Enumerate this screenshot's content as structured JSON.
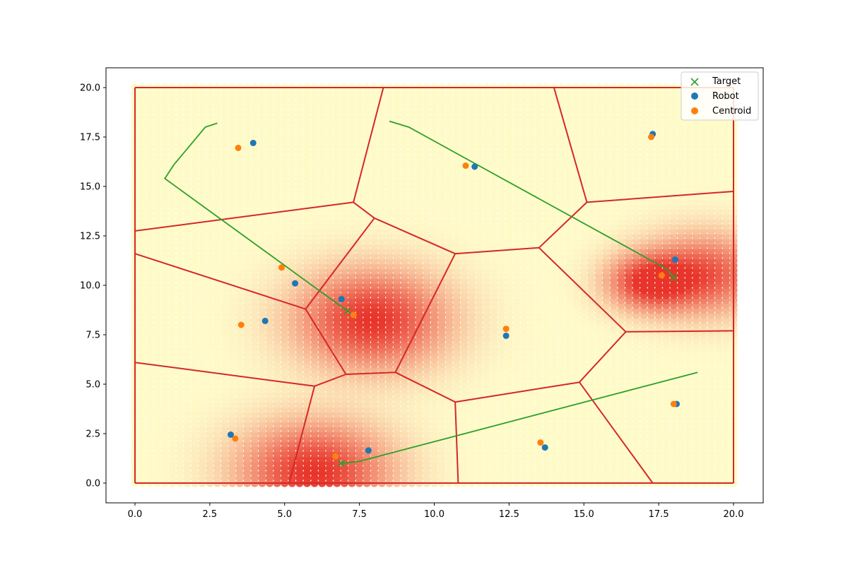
{
  "chart_data": {
    "type": "scatter",
    "xlim": [
      -1,
      21
    ],
    "ylim": [
      -1,
      21
    ],
    "x_ticks": [
      "0.0",
      "2.5",
      "5.0",
      "7.5",
      "10.0",
      "12.5",
      "15.0",
      "17.5",
      "20.0"
    ],
    "y_ticks": [
      "0.0",
      "2.5",
      "5.0",
      "7.5",
      "10.0",
      "12.5",
      "15.0",
      "17.5",
      "20.0"
    ],
    "grid": false,
    "legend_position": "top-right",
    "legend": [
      {
        "label": "Target",
        "marker": "x",
        "color": "#2ca02c"
      },
      {
        "label": "Robot",
        "marker": "circle",
        "color": "#1f77b4"
      },
      {
        "label": "Centroid",
        "marker": "circle",
        "color": "#ff7f0e"
      }
    ],
    "density_peaks": [
      {
        "x": 7.9,
        "y": 8.3,
        "sigma": 1.6,
        "weight": 1.0
      },
      {
        "x": 6.0,
        "y": 0.6,
        "sigma": 1.6,
        "weight": 1.0
      },
      {
        "x": 17.2,
        "y": 10.2,
        "sigma": 0.9,
        "weight": 0.95
      },
      {
        "x": 19.0,
        "y": 10.6,
        "sigma": 1.3,
        "weight": 0.8
      }
    ],
    "density_colors": {
      "low": "#fffbc9",
      "high": "#e8342a"
    },
    "targets": [
      {
        "x": 7.1,
        "y": 8.7
      },
      {
        "x": 18.0,
        "y": 10.4
      },
      {
        "x": 6.9,
        "y": 1.0
      }
    ],
    "robots": [
      {
        "x": 3.95,
        "y": 17.2
      },
      {
        "x": 11.35,
        "y": 16.0
      },
      {
        "x": 17.3,
        "y": 17.65
      },
      {
        "x": 5.35,
        "y": 10.1
      },
      {
        "x": 6.9,
        "y": 9.3
      },
      {
        "x": 4.35,
        "y": 8.2
      },
      {
        "x": 12.4,
        "y": 7.45
      },
      {
        "x": 18.05,
        "y": 11.3
      },
      {
        "x": 3.2,
        "y": 2.45
      },
      {
        "x": 7.8,
        "y": 1.65
      },
      {
        "x": 13.7,
        "y": 1.8
      },
      {
        "x": 18.1,
        "y": 4.0
      }
    ],
    "centroids": [
      {
        "x": 3.45,
        "y": 16.95
      },
      {
        "x": 11.05,
        "y": 16.05
      },
      {
        "x": 17.25,
        "y": 17.5
      },
      {
        "x": 4.9,
        "y": 10.9
      },
      {
        "x": 7.3,
        "y": 8.5
      },
      {
        "x": 3.55,
        "y": 8.0
      },
      {
        "x": 12.4,
        "y": 7.8
      },
      {
        "x": 17.6,
        "y": 10.5
      },
      {
        "x": 3.35,
        "y": 2.25
      },
      {
        "x": 6.7,
        "y": 1.35
      },
      {
        "x": 13.55,
        "y": 2.05
      },
      {
        "x": 18.0,
        "y": 4.0
      }
    ],
    "target_paths": [
      [
        [
          2.75,
          18.2
        ],
        [
          2.35,
          18.0
        ],
        [
          1.3,
          16.1
        ],
        [
          1.0,
          15.4
        ],
        [
          7.1,
          8.7
        ]
      ],
      [
        [
          8.5,
          18.3
        ],
        [
          9.15,
          18.0
        ],
        [
          17.8,
          10.8
        ],
        [
          18.0,
          10.4
        ]
      ],
      [
        [
          6.9,
          1.0
        ],
        [
          7.5,
          1.1
        ],
        [
          18.8,
          5.6
        ]
      ]
    ],
    "voronoi_edges": [
      [
        [
          0,
          20
        ],
        [
          20,
          20
        ]
      ],
      [
        [
          0,
          0
        ],
        [
          20,
          0
        ]
      ],
      [
        [
          0,
          0
        ],
        [
          0,
          20
        ]
      ],
      [
        [
          20,
          0
        ],
        [
          20,
          20
        ]
      ],
      [
        [
          8.3,
          20
        ],
        [
          7.3,
          14.2
        ]
      ],
      [
        [
          0,
          12.75
        ],
        [
          7.3,
          14.2
        ]
      ],
      [
        [
          7.3,
          14.2
        ],
        [
          8.0,
          13.4
        ]
      ],
      [
        [
          14.0,
          20
        ],
        [
          15.1,
          14.2
        ]
      ],
      [
        [
          15.1,
          14.2
        ],
        [
          20,
          14.75
        ]
      ],
      [
        [
          15.1,
          14.2
        ],
        [
          13.5,
          11.9
        ]
      ],
      [
        [
          8.0,
          13.4
        ],
        [
          10.7,
          11.6
        ]
      ],
      [
        [
          10.7,
          11.6
        ],
        [
          13.5,
          11.9
        ]
      ],
      [
        [
          8.0,
          13.4
        ],
        [
          5.7,
          8.8
        ]
      ],
      [
        [
          0,
          11.6
        ],
        [
          5.7,
          8.8
        ]
      ],
      [
        [
          5.7,
          8.8
        ],
        [
          7.05,
          5.5
        ]
      ],
      [
        [
          10.7,
          11.6
        ],
        [
          8.7,
          5.6
        ]
      ],
      [
        [
          13.5,
          11.9
        ],
        [
          16.4,
          7.65
        ]
      ],
      [
        [
          16.4,
          7.65
        ],
        [
          20,
          7.7
        ]
      ],
      [
        [
          16.4,
          7.65
        ],
        [
          14.85,
          5.1
        ]
      ],
      [
        [
          0,
          6.1
        ],
        [
          6.0,
          4.9
        ]
      ],
      [
        [
          6.0,
          4.9
        ],
        [
          7.05,
          5.5
        ]
      ],
      [
        [
          7.05,
          5.5
        ],
        [
          8.7,
          5.6
        ]
      ],
      [
        [
          8.7,
          5.6
        ],
        [
          10.7,
          4.1
        ]
      ],
      [
        [
          10.7,
          4.1
        ],
        [
          14.85,
          5.1
        ]
      ],
      [
        [
          14.85,
          5.1
        ],
        [
          17.3,
          0
        ]
      ],
      [
        [
          6.0,
          4.9
        ],
        [
          5.15,
          0
        ]
      ],
      [
        [
          10.7,
          4.1
        ],
        [
          10.8,
          0
        ]
      ]
    ]
  }
}
